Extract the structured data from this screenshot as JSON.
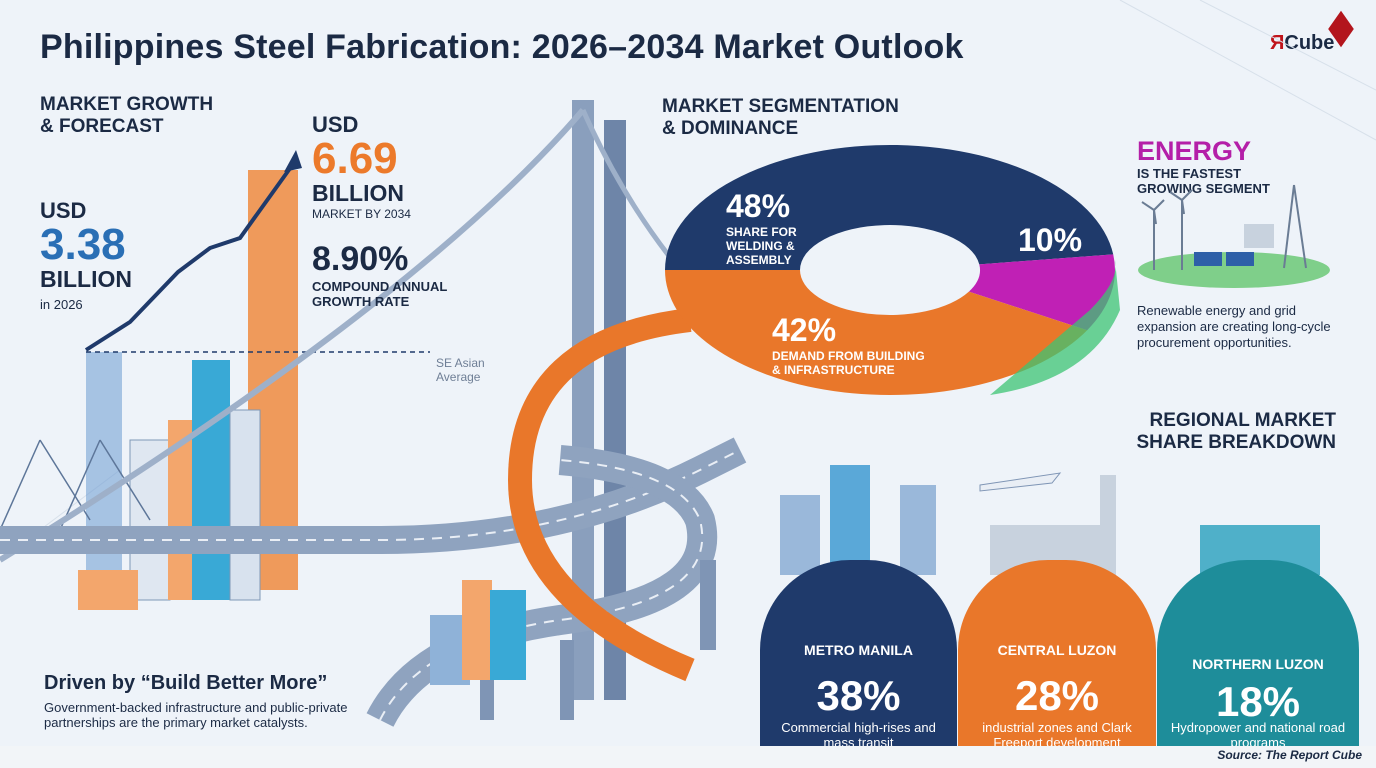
{
  "title": "Philippines Steel Fabrication: 2026–2034 Market Outlook",
  "logo": {
    "prefix": "Я",
    "suffix": "Cube"
  },
  "growth": {
    "heading_line1": "MARKET GROWTH",
    "heading_line2": "& FORECAST",
    "start_usd": "USD",
    "start_value": "3.38",
    "start_unit": "BILLION",
    "start_note": "in 2026",
    "end_usd": "USD",
    "end_value": "6.69",
    "end_unit": "BILLION",
    "end_note": "MARKET BY 2034",
    "cagr_value": "8.90%",
    "cagr_line1": "COMPOUND ANNUAL",
    "cagr_line2": "GROWTH RATE",
    "benchmark_line1": "SE Asian",
    "benchmark_line2": "Average"
  },
  "segmentation": {
    "heading_line1": "MARKET SEGMENTATION",
    "heading_line2": "& DOMINANCE",
    "welding_pct": "48%",
    "welding_line1": "SHARE FOR",
    "welding_line2": "WELDING &",
    "welding_line3": "ASSEMBLY",
    "building_pct": "42%",
    "building_line1": "DEMAND FROM BUILDING",
    "building_line2": "& INFRASTRUCTURE",
    "energy_pct": "10%"
  },
  "energy": {
    "heading": "ENERGY",
    "sub_line1": "IS THE FASTEST",
    "sub_line2": "GROWING SEGMENT",
    "text": "Renewable energy and grid expansion are creating long-cycle procurement opportunities."
  },
  "driver": {
    "title": "Driven by “Build Better More”",
    "text": "Government-backed infrastructure and public-private partnerships are the primary market catalysts."
  },
  "regional": {
    "heading_line1": "REGIONAL MARKET",
    "heading_line2": "SHARE BREAKDOWN",
    "regions": [
      {
        "name": "METRO MANILA",
        "pct": "38%",
        "desc": "Commercial high-rises and mass transit"
      },
      {
        "name": "CENTRAL LUZON",
        "pct": "28%",
        "desc": "industrial zones and Clark Freeport development"
      },
      {
        "name": "NORTHERN LUZON",
        "pct": "18%",
        "desc": "Hydropower and national road programs"
      }
    ]
  },
  "source": "Source: The Report Cube",
  "colors": {
    "navy": "#1f3a6b",
    "orange": "#e9772a",
    "teal": "#1e8d9a",
    "magenta": "#c020b5",
    "green": "#3cc473",
    "blue": "#2a6fb5"
  },
  "chart_data": [
    {
      "type": "bar",
      "categories": [
        "2026",
        "2034"
      ],
      "values": [
        3.38,
        6.69
      ],
      "ylabel": "",
      "title": ""
    },
    {
      "type": "pie",
      "labels": [
        "Welding & Assembly",
        "Building & Infrastructure",
        "Energy"
      ],
      "values": [
        48,
        42,
        10
      ]
    },
    {
      "type": "bar",
      "categories": [
        "METRO MANILA",
        "CENTRAL LUZON",
        "NORTHERN LUZON"
      ],
      "values": [
        38,
        28,
        18
      ]
    }
  ]
}
